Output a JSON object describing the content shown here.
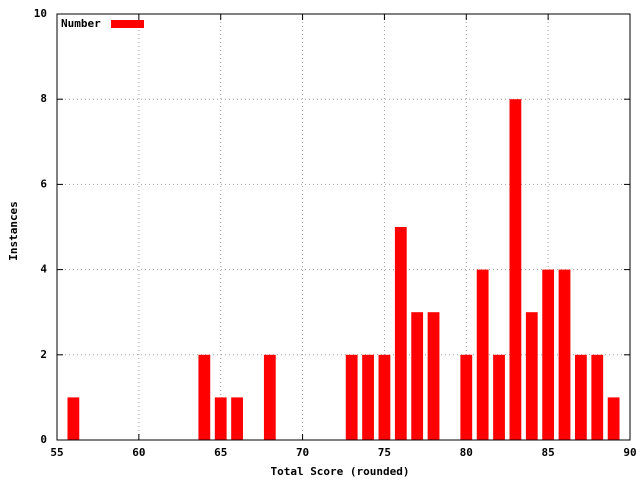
{
  "chart_data": {
    "type": "bar",
    "x": [
      56,
      64,
      65,
      66,
      68,
      73,
      74,
      75,
      76,
      77,
      78,
      80,
      81,
      82,
      83,
      84,
      85,
      86,
      87,
      88,
      89
    ],
    "series": [
      {
        "name": "Number",
        "color": "#ff0000",
        "values": [
          1,
          2,
          1,
          1,
          2,
          2,
          2,
          2,
          5,
          3,
          3,
          2,
          4,
          2,
          8,
          3,
          4,
          4,
          2,
          2,
          1
        ]
      }
    ],
    "xlabel": "Total Score (rounded)",
    "ylabel": "Instances",
    "xlim": [
      55,
      90
    ],
    "xticks": [
      55,
      60,
      65,
      70,
      75,
      80,
      85,
      90
    ],
    "ylim": [
      0,
      10
    ],
    "yticks": [
      0,
      2,
      4,
      6,
      8,
      10
    ],
    "grid": true,
    "legend": "top-left"
  }
}
